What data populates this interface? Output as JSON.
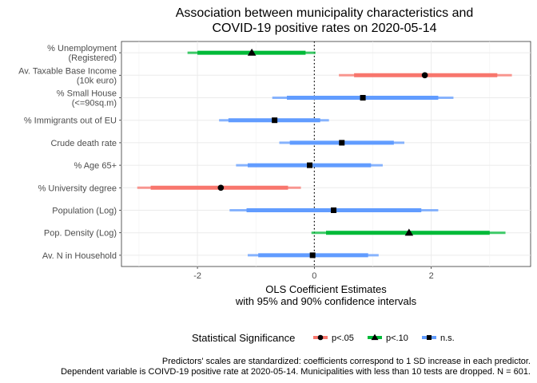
{
  "chart_data": {
    "type": "forest",
    "title_lines": [
      "Association between municipality characteristics and",
      "COVID-19 positive rates on 2020-05-14"
    ],
    "xlabel_lines": [
      "OLS Coefficient Estimates",
      "with 95% and 90% confidence intervals"
    ],
    "xlim": [
      -3.3,
      3.7
    ],
    "xticks": [
      -2,
      0,
      2
    ],
    "xtick_labels": [
      "-2",
      "0",
      "2"
    ],
    "grid": true,
    "reference_line": 0,
    "legend": {
      "title": "Statistical Significance",
      "position": "bottom",
      "entries": [
        {
          "label": "p<.05",
          "color": "#F8766D",
          "shape": "circle"
        },
        {
          "label": "p<.10",
          "color": "#00BA38",
          "shape": "triangle"
        },
        {
          "label": "n.s.",
          "color": "#619CFF",
          "shape": "square"
        }
      ]
    },
    "rows": [
      {
        "label_lines": [
          "% Unemployment",
          "(Registered)"
        ],
        "estimate": -1.07,
        "ci90": [
          -2.0,
          -0.15
        ],
        "ci95": [
          -2.17,
          0.02
        ],
        "significance": "p<.10"
      },
      {
        "label_lines": [
          "Av. Taxable Base Income",
          "(10k euro)"
        ],
        "estimate": 1.89,
        "ci90": [
          0.68,
          3.13
        ],
        "ci95": [
          0.42,
          3.38
        ],
        "significance": "p<.05"
      },
      {
        "label_lines": [
          "% Small House",
          "(<=90sq.m)"
        ],
        "estimate": 0.83,
        "ci90": [
          -0.47,
          2.12
        ],
        "ci95": [
          -0.72,
          2.38
        ],
        "significance": "n.s."
      },
      {
        "label_lines": [
          "% Immigrants out of EU"
        ],
        "estimate": -0.68,
        "ci90": [
          -1.47,
          0.1
        ],
        "ci95": [
          -1.63,
          0.25
        ],
        "significance": "n.s."
      },
      {
        "label_lines": [
          "Crude death rate"
        ],
        "estimate": 0.47,
        "ci90": [
          -0.42,
          1.36
        ],
        "ci95": [
          -0.6,
          1.54
        ],
        "significance": "n.s."
      },
      {
        "label_lines": [
          "% Age 65+"
        ],
        "estimate": -0.08,
        "ci90": [
          -1.14,
          0.97
        ],
        "ci95": [
          -1.34,
          1.17
        ],
        "significance": "n.s."
      },
      {
        "label_lines": [
          "% University degree"
        ],
        "estimate": -1.6,
        "ci90": [
          -2.8,
          -0.45
        ],
        "ci95": [
          -3.03,
          -0.23
        ],
        "significance": "p<.05"
      },
      {
        "label_lines": [
          "Population (Log)"
        ],
        "estimate": 0.33,
        "ci90": [
          -1.16,
          1.83
        ],
        "ci95": [
          -1.45,
          2.12
        ],
        "significance": "n.s."
      },
      {
        "label_lines": [
          "Pop. Density (Log)"
        ],
        "estimate": 1.62,
        "ci90": [
          0.2,
          3.0
        ],
        "ci95": [
          -0.05,
          3.27
        ],
        "significance": "p<.10"
      },
      {
        "label_lines": [
          "Av. N in Household"
        ],
        "estimate": -0.03,
        "ci90": [
          -0.96,
          0.92
        ],
        "ci95": [
          -1.14,
          1.1
        ],
        "significance": "n.s."
      }
    ],
    "caption_lines": [
      "Predictors' scales are standardized: coefficients correspond to 1 SD increase in each predictor.",
      "Dependent variable is COIVD-19 positive rate at 2020-05-14. Municipalities with less than 10 tests are dropped. N = 601."
    ]
  }
}
